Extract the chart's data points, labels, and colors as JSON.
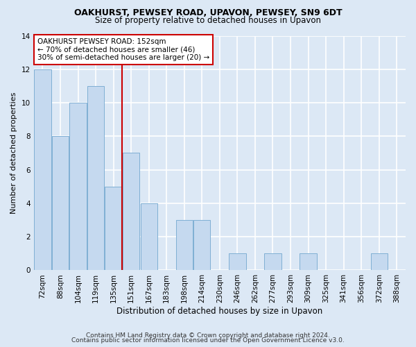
{
  "title1": "OAKHURST, PEWSEY ROAD, UPAVON, PEWSEY, SN9 6DT",
  "title2": "Size of property relative to detached houses in Upavon",
  "xlabel": "Distribution of detached houses by size in Upavon",
  "ylabel": "Number of detached properties",
  "categories": [
    "72sqm",
    "88sqm",
    "104sqm",
    "119sqm",
    "135sqm",
    "151sqm",
    "167sqm",
    "183sqm",
    "198sqm",
    "214sqm",
    "230sqm",
    "246sqm",
    "262sqm",
    "277sqm",
    "293sqm",
    "309sqm",
    "325sqm",
    "341sqm",
    "356sqm",
    "372sqm",
    "388sqm"
  ],
  "values": [
    12,
    8,
    10,
    11,
    5,
    7,
    4,
    0,
    3,
    3,
    0,
    1,
    0,
    1,
    0,
    1,
    0,
    0,
    0,
    1,
    0
  ],
  "bar_color": "#c5d9ef",
  "bar_edge_color": "#7fafd4",
  "vline_x": 4.5,
  "vline_color": "#cc0000",
  "annotation_text": "OAKHURST PEWSEY ROAD: 152sqm\n← 70% of detached houses are smaller (46)\n30% of semi-detached houses are larger (20) →",
  "annotation_box_color": "#ffffff",
  "annotation_box_edge": "#cc0000",
  "footer1": "Contains HM Land Registry data © Crown copyright and database right 2024.",
  "footer2": "Contains public sector information licensed under the Open Government Licence v3.0.",
  "ylim": [
    0,
    14
  ],
  "bg_color": "#dce8f5",
  "grid_color": "#ffffff",
  "title_fontsize": 9,
  "subtitle_fontsize": 8.5,
  "ylabel_fontsize": 8,
  "xlabel_fontsize": 8.5,
  "tick_fontsize": 7.5,
  "footer_fontsize": 6.5,
  "ann_fontsize": 7.5
}
